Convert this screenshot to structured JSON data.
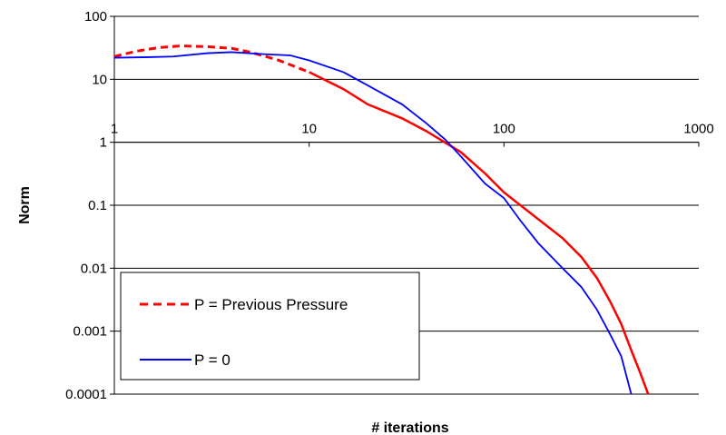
{
  "chart_data": {
    "type": "line",
    "title": "",
    "xlabel": "# iterations",
    "ylabel": "Norm",
    "x_scale": "log",
    "y_scale": "log",
    "xlim": [
      1,
      1000
    ],
    "ylim": [
      0.0001,
      100
    ],
    "x_ticks": [
      "1",
      "10",
      "100",
      "1000"
    ],
    "y_ticks": [
      "100",
      "10",
      "1",
      "0.1",
      "0.01",
      "0.001",
      "0.0001"
    ],
    "grid": "horizontal",
    "legend_position": "bottom-left",
    "series": [
      {
        "name": "P = Previous Pressure",
        "color": "#ff0000",
        "style": "dashed-then-solid",
        "points": [
          [
            1,
            23
          ],
          [
            1.3,
            28
          ],
          [
            1.7,
            32
          ],
          [
            2.2,
            34
          ],
          [
            3,
            33
          ],
          [
            4,
            31
          ],
          [
            5,
            27
          ],
          [
            7,
            20
          ],
          [
            10,
            13
          ],
          [
            15,
            7
          ],
          [
            20,
            4
          ],
          [
            30,
            2.4
          ],
          [
            40,
            1.5
          ],
          [
            60,
            0.7
          ],
          [
            80,
            0.32
          ],
          [
            100,
            0.16
          ],
          [
            150,
            0.06
          ],
          [
            200,
            0.03
          ],
          [
            250,
            0.015
          ],
          [
            300,
            0.007
          ],
          [
            350,
            0.003
          ],
          [
            400,
            0.0013
          ],
          [
            450,
            0.0005
          ],
          [
            500,
            0.00022
          ],
          [
            550,
            0.0001
          ]
        ]
      },
      {
        "name": "P = 0",
        "color": "#0000ff",
        "style": "solid",
        "points": [
          [
            1,
            22
          ],
          [
            1.5,
            22.5
          ],
          [
            2,
            23
          ],
          [
            3,
            26
          ],
          [
            4,
            27
          ],
          [
            6,
            25
          ],
          [
            8,
            24
          ],
          [
            10,
            20
          ],
          [
            15,
            13
          ],
          [
            20,
            8
          ],
          [
            30,
            4
          ],
          [
            40,
            2
          ],
          [
            50,
            1.1
          ],
          [
            60,
            0.6
          ],
          [
            70,
            0.35
          ],
          [
            80,
            0.22
          ],
          [
            100,
            0.13
          ],
          [
            120,
            0.06
          ],
          [
            150,
            0.025
          ],
          [
            200,
            0.01
          ],
          [
            250,
            0.005
          ],
          [
            300,
            0.0022
          ],
          [
            350,
            0.0009
          ],
          [
            400,
            0.0004
          ],
          [
            450,
            0.0001
          ]
        ]
      }
    ]
  }
}
